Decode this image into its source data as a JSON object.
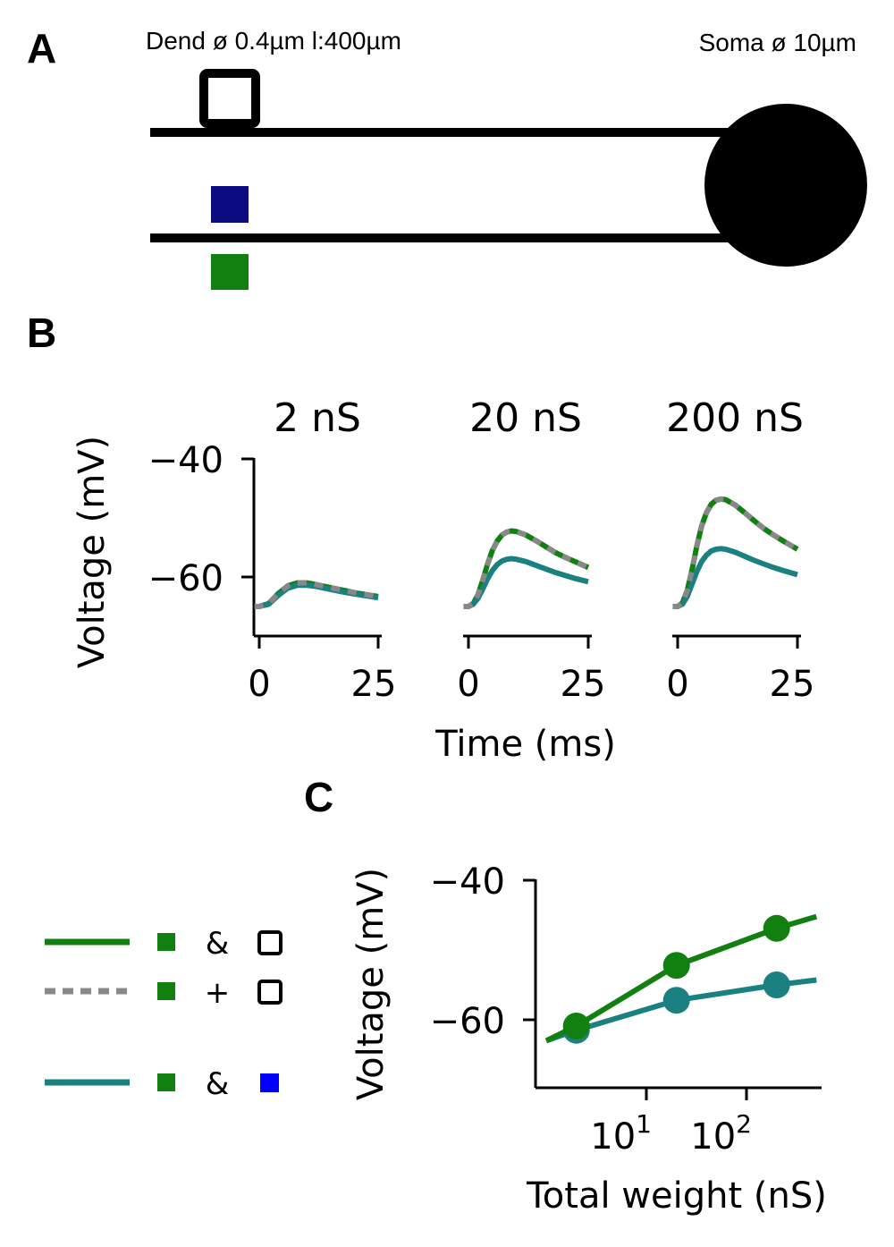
{
  "panelA": {
    "label": "A",
    "dend_text": "Dend ø 0.4µm l:400µm",
    "soma_text": "Soma ø 10µm",
    "colors": {
      "line": "#000000",
      "blue_marker": "#0c0c80",
      "green_marker": "#118011"
    }
  },
  "panelB": {
    "label": "B",
    "ylabel": "Voltage (mV)",
    "xlabel": "Time (ms)",
    "yticks": [
      "−40",
      "−60"
    ],
    "xticks": [
      "0",
      "25"
    ],
    "subplots": [
      {
        "title": "2 nS"
      },
      {
        "title": "20 nS"
      },
      {
        "title": "200 nS"
      }
    ]
  },
  "panelC": {
    "label": "C",
    "ylabel": "Voltage (mV)",
    "xlabel": "Total weight (nS)",
    "yticks": [
      "−40",
      "−60"
    ],
    "xtick_base": "10",
    "xtick_exps": [
      "1",
      "2"
    ]
  },
  "legend": {
    "items": [
      {
        "style": "solid-green",
        "op": "&",
        "second": "open-square"
      },
      {
        "style": "dashed-grey",
        "op": "+",
        "second": "open-square"
      },
      {
        "style": "solid-teal",
        "op": "&",
        "second": "blue-square"
      }
    ]
  },
  "colors": {
    "green": "#118011",
    "teal": "#1a8080",
    "grey": "#888888",
    "blue": "#0000ff",
    "navy": "#0c0c80"
  },
  "chart_data": [
    {
      "type": "line",
      "panel": "B",
      "subplot": "2 nS",
      "xlabel": "Time (ms)",
      "ylabel": "Voltage (mV)",
      "xlim": [
        -1,
        25
      ],
      "ylim": [
        -70,
        -40
      ],
      "series": [
        {
          "style": "solid-green",
          "x": [
            -1,
            0,
            2,
            4,
            6,
            8,
            10,
            12,
            15,
            18,
            21,
            25
          ],
          "y": [
            -65,
            -65,
            -64.5,
            -62.8,
            -61.5,
            -61,
            -61,
            -61.3,
            -61.8,
            -62.3,
            -62.8,
            -63.3
          ]
        },
        {
          "style": "dashed-grey",
          "x": [
            -1,
            0,
            2,
            4,
            6,
            8,
            10,
            12,
            15,
            18,
            21,
            25
          ],
          "y": [
            -65,
            -65,
            -64.5,
            -62.8,
            -61.5,
            -61,
            -61,
            -61.3,
            -61.8,
            -62.3,
            -62.8,
            -63.3
          ]
        },
        {
          "style": "solid-teal",
          "x": [
            -1,
            0,
            2,
            4,
            6,
            8,
            10,
            12,
            15,
            18,
            21,
            25
          ],
          "y": [
            -65,
            -65,
            -64.6,
            -63.1,
            -61.9,
            -61.4,
            -61.4,
            -61.6,
            -62.1,
            -62.6,
            -63,
            -63.5
          ]
        }
      ]
    },
    {
      "type": "line",
      "panel": "B",
      "subplot": "20 nS",
      "xlabel": "Time (ms)",
      "ylabel": "Voltage (mV)",
      "xlim": [
        -1,
        25
      ],
      "ylim": [
        -70,
        -40
      ],
      "series": [
        {
          "style": "solid-green",
          "x": [
            -1,
            0,
            1,
            2,
            3,
            4,
            5,
            6,
            7,
            8,
            9,
            10,
            12,
            14,
            16,
            18,
            20,
            22,
            25
          ],
          "y": [
            -65,
            -65,
            -64.5,
            -63,
            -60.5,
            -57.8,
            -55.5,
            -53.9,
            -52.9,
            -52.4,
            -52.2,
            -52.3,
            -52.9,
            -53.8,
            -54.8,
            -55.8,
            -56.6,
            -57.3,
            -58.4
          ]
        },
        {
          "style": "dashed-grey",
          "x": [
            -1,
            0,
            1,
            2,
            3,
            4,
            5,
            6,
            7,
            8,
            9,
            10,
            12,
            14,
            16,
            18,
            20,
            22,
            25
          ],
          "y": [
            -65,
            -65,
            -64.5,
            -63,
            -60.5,
            -57.8,
            -55.5,
            -53.9,
            -52.9,
            -52.4,
            -52.2,
            -52.3,
            -52.9,
            -53.8,
            -54.8,
            -55.8,
            -56.6,
            -57.3,
            -58.4
          ]
        },
        {
          "style": "solid-teal",
          "x": [
            -1,
            0,
            1,
            2,
            3,
            4,
            5,
            6,
            7,
            8,
            9,
            10,
            12,
            14,
            16,
            18,
            20,
            22,
            25
          ],
          "y": [
            -65,
            -65,
            -64.6,
            -63.6,
            -62,
            -60.3,
            -58.9,
            -57.9,
            -57.3,
            -57,
            -56.9,
            -57,
            -57.4,
            -58,
            -58.6,
            -59.2,
            -59.7,
            -60.2,
            -60.8
          ]
        }
      ]
    },
    {
      "type": "line",
      "panel": "B",
      "subplot": "200 nS",
      "xlabel": "Time (ms)",
      "ylabel": "Voltage (mV)",
      "xlim": [
        -1,
        25
      ],
      "ylim": [
        -70,
        -40
      ],
      "series": [
        {
          "style": "solid-green",
          "x": [
            -1,
            0,
            1,
            2,
            3,
            4,
            5,
            6,
            7,
            8,
            9,
            10,
            12,
            14,
            16,
            18,
            20,
            22,
            25
          ],
          "y": [
            -65,
            -65,
            -64.4,
            -62.3,
            -58.8,
            -54.8,
            -51.4,
            -49.1,
            -47.7,
            -47,
            -46.8,
            -46.9,
            -47.8,
            -49.1,
            -50.5,
            -51.8,
            -52.9,
            -53.9,
            -55.3
          ]
        },
        {
          "style": "dashed-grey",
          "x": [
            -1,
            0,
            1,
            2,
            3,
            4,
            5,
            6,
            7,
            8,
            9,
            10,
            12,
            14,
            16,
            18,
            20,
            22,
            25
          ],
          "y": [
            -65,
            -65,
            -64.4,
            -62.3,
            -58.8,
            -54.8,
            -51.4,
            -49.1,
            -47.7,
            -47,
            -46.8,
            -46.9,
            -47.8,
            -49.1,
            -50.5,
            -51.8,
            -52.9,
            -53.9,
            -55.3
          ]
        },
        {
          "style": "solid-teal",
          "x": [
            -1,
            0,
            1,
            2,
            3,
            4,
            5,
            6,
            7,
            8,
            9,
            10,
            12,
            14,
            16,
            18,
            20,
            22,
            25
          ],
          "y": [
            -65,
            -65,
            -64.6,
            -63.3,
            -61.2,
            -59.1,
            -57.4,
            -56.3,
            -55.6,
            -55.3,
            -55.2,
            -55.3,
            -55.8,
            -56.5,
            -57.2,
            -57.8,
            -58.4,
            -58.9,
            -59.6
          ]
        }
      ]
    },
    {
      "type": "line",
      "panel": "C",
      "xlabel": "Total weight (nS)",
      "ylabel": "Voltage (mV)",
      "xscale": "log",
      "xlim": [
        1,
        500
      ],
      "ylim": [
        -69,
        -40
      ],
      "series": [
        {
          "style": "solid-green",
          "markers": true,
          "x": [
            1.0,
            2,
            20,
            200,
            500
          ],
          "y": [
            -63.0,
            -60.9,
            -52.2,
            -46.9,
            -45.2
          ]
        },
        {
          "style": "solid-teal",
          "markers": true,
          "x": [
            1.0,
            2,
            20,
            200,
            500
          ],
          "y": [
            -63.0,
            -61.5,
            -57.2,
            -55.0,
            -54.3
          ]
        }
      ],
      "markers_at": [
        2,
        20,
        200
      ]
    }
  ]
}
